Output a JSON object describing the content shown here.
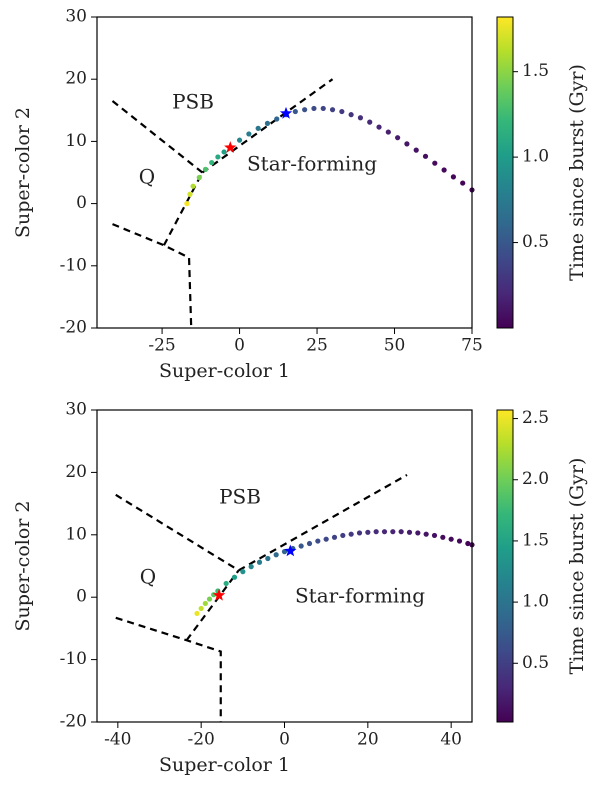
{
  "chart_data": [
    {
      "type": "scatter",
      "xlabel": "Super-color 1",
      "ylabel": "Super-color 2",
      "xlim": [
        -46,
        75
      ],
      "ylim": [
        -20,
        30
      ],
      "xticks": [
        -25,
        0,
        25,
        50,
        75
      ],
      "yticks": [
        -20,
        -10,
        0,
        10,
        20,
        30
      ],
      "x": [
        -17,
        -16,
        -15,
        -13,
        -11,
        -9,
        -7,
        -5,
        -3,
        0,
        3,
        6,
        9,
        12,
        15,
        18,
        21,
        24,
        27,
        30,
        33,
        36,
        39,
        42,
        45,
        48,
        51,
        54,
        57,
        60,
        63,
        66,
        69,
        72,
        75
      ],
      "y": [
        0,
        1.5,
        2.8,
        4.2,
        5.5,
        6.6,
        7.5,
        8.3,
        9.0,
        10.2,
        11.2,
        12.1,
        12.9,
        13.6,
        14.3,
        14.8,
        15.1,
        15.3,
        15.3,
        15.1,
        14.8,
        14.3,
        13.8,
        13.1,
        12.3,
        11.5,
        10.6,
        9.6,
        8.6,
        7.6,
        6.5,
        5.4,
        4.3,
        3.3,
        2.2
      ],
      "c": [
        1.8,
        1.7,
        1.6,
        1.45,
        1.3,
        1.2,
        1.1,
        1.02,
        0.95,
        0.85,
        0.78,
        0.72,
        0.66,
        0.6,
        0.55,
        0.5,
        0.46,
        0.42,
        0.38,
        0.35,
        0.31,
        0.28,
        0.25,
        0.22,
        0.19,
        0.16,
        0.14,
        0.11,
        0.09,
        0.07,
        0.05,
        0.04,
        0.03,
        0.02,
        0.01
      ],
      "colormap": "viridis",
      "colorbar_label": "Time since burst (Gyr)",
      "clim": [
        0,
        1.82
      ],
      "cticks": [
        0.5,
        {
          "value": 1,
          "label": "1.0"
        },
        1.5
      ],
      "markers": [
        {
          "x": -3,
          "y": 9,
          "color": "red"
        },
        {
          "x": 15,
          "y": 14.5,
          "color": "blue"
        }
      ],
      "boundaries": [
        {
          "x": [
            -41,
            -12
          ],
          "y": [
            16.5,
            5
          ]
        },
        {
          "x": [
            -12,
            30
          ],
          "y": [
            5,
            20
          ]
        },
        {
          "x": [
            -24.4,
            -12
          ],
          "y": [
            -6.7,
            5
          ]
        },
        {
          "x": [
            -41,
            -24.4,
            -16.3,
            -15.6
          ],
          "y": [
            -3.3,
            -6.7,
            -8.7,
            -20
          ]
        }
      ],
      "annotations": [
        "PSB",
        "Q",
        "Star-forming"
      ]
    },
    {
      "type": "scatter",
      "xlabel": "Super-color 1",
      "ylabel": "Super-color 2",
      "xlim": [
        -45,
        45
      ],
      "ylim": [
        -20,
        30
      ],
      "xticks": [
        -40,
        -20,
        0,
        20,
        40
      ],
      "yticks": [
        -20,
        -10,
        0,
        10,
        20,
        30
      ],
      "x": [
        -21,
        -20,
        -19,
        -18,
        -17,
        -16,
        -14,
        -12,
        -10,
        -8,
        -6,
        -4,
        -2,
        0,
        2,
        4,
        6,
        8,
        10,
        12,
        14,
        16,
        18,
        20,
        22,
        24,
        26,
        28,
        30,
        32,
        34,
        36,
        38,
        40,
        42,
        44,
        45
      ],
      "y": [
        -2.6,
        -1.8,
        -1,
        -0.3,
        0.4,
        1.0,
        2.2,
        3.2,
        4.1,
        4.9,
        5.6,
        6.2,
        6.8,
        7.3,
        7.8,
        8.2,
        8.6,
        9.0,
        9.3,
        9.6,
        9.9,
        10.1,
        10.3,
        10.4,
        10.5,
        10.5,
        10.5,
        10.5,
        10.4,
        10.3,
        10.1,
        9.9,
        9.6,
        9.3,
        9.0,
        8.6,
        8.4
      ],
      "c": [
        2.5,
        2.35,
        2.2,
        2.05,
        1.9,
        1.75,
        1.6,
        1.45,
        1.32,
        1.2,
        1.1,
        1.0,
        0.92,
        0.85,
        0.78,
        0.72,
        0.67,
        0.62,
        0.57,
        0.53,
        0.49,
        0.45,
        0.41,
        0.37,
        0.34,
        0.31,
        0.28,
        0.25,
        0.22,
        0.19,
        0.16,
        0.13,
        0.1,
        0.08,
        0.06,
        0.04,
        0.03
      ],
      "colormap": "viridis",
      "colorbar_label": "Time since burst (Gyr)",
      "clim": [
        0.02,
        2.57
      ],
      "cticks": [
        0.5,
        {
          "value": 1,
          "label": "1.0"
        },
        1.5,
        {
          "value": 2,
          "label": "2.0"
        },
        2.5
      ],
      "markers": [
        {
          "x": -15.7,
          "y": 0.3,
          "color": "red"
        },
        {
          "x": 1.4,
          "y": 7.4,
          "color": "blue"
        }
      ],
      "boundaries": [
        {
          "x": [
            -40.5,
            -11
          ],
          "y": [
            16.4,
            4.3
          ]
        },
        {
          "x": [
            -11,
            29.4
          ],
          "y": [
            4.3,
            19.6
          ]
        },
        {
          "x": [
            -23.5,
            -11
          ],
          "y": [
            -6.9,
            4.3
          ]
        },
        {
          "x": [
            -40.5,
            -23.5,
            -15.3,
            -15.3
          ],
          "y": [
            -3.3,
            -6.9,
            -8.7,
            -20
          ]
        }
      ],
      "annotations": [
        "PSB",
        "Q",
        "Star-forming"
      ]
    }
  ]
}
